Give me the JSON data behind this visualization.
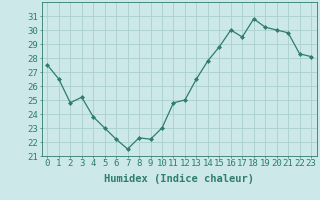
{
  "x": [
    0,
    1,
    2,
    3,
    4,
    5,
    6,
    7,
    8,
    9,
    10,
    11,
    12,
    13,
    14,
    15,
    16,
    17,
    18,
    19,
    20,
    21,
    22,
    23
  ],
  "y": [
    27.5,
    26.5,
    24.8,
    25.2,
    23.8,
    23.0,
    22.2,
    21.5,
    22.3,
    22.2,
    23.0,
    24.8,
    25.0,
    26.5,
    27.8,
    28.8,
    30.0,
    29.5,
    30.8,
    30.2,
    30.0,
    29.8,
    28.3,
    28.1
  ],
  "line_color": "#2e7d6e",
  "marker": "D",
  "marker_size": 2.0,
  "bg_color": "#cce8e8",
  "grid_color": "#aacfcf",
  "xlabel": "Humidex (Indice chaleur)",
  "ylim": [
    21,
    32
  ],
  "yticks": [
    21,
    22,
    23,
    24,
    25,
    26,
    27,
    28,
    29,
    30,
    31
  ],
  "xticks": [
    0,
    1,
    2,
    3,
    4,
    5,
    6,
    7,
    8,
    9,
    10,
    11,
    12,
    13,
    14,
    15,
    16,
    17,
    18,
    19,
    20,
    21,
    22,
    23
  ],
  "tick_label_fontsize": 6.5,
  "xlabel_fontsize": 7.5
}
